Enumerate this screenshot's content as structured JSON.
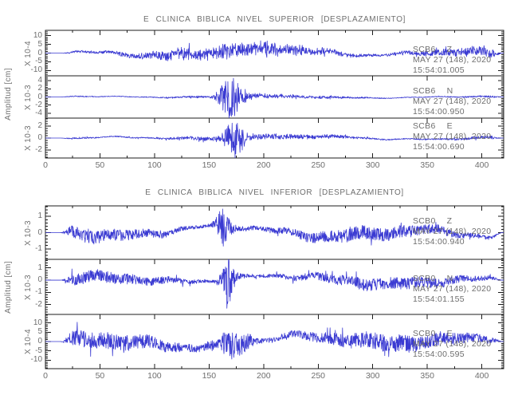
{
  "colors": {
    "trace": "#3a3ad2",
    "text": "#6e6e6e",
    "axis": "#1c1c1c",
    "background": "#ffffff"
  },
  "chart_data": [
    {
      "type": "line",
      "title": "E CLINICA BIBLICA NIVEL SUPERIOR [DESPLAZAMIENTO]",
      "ylabel": "Amplitud [cm]",
      "xlabel": "",
      "grid": false,
      "x_axis": {
        "range": [
          0,
          420
        ],
        "major_ticks": [
          0,
          50,
          100,
          150,
          200,
          250,
          300,
          350,
          400
        ],
        "minor_step": 25
      },
      "series": [
        {
          "station": "SCB6",
          "component": "Z",
          "date": "MAY 27 (148), 2020",
          "time": "15:54:01.005",
          "scale_label": "X 10-4",
          "y_ticks": [
            10,
            5,
            0,
            -5,
            -10
          ],
          "ylim": [
            -13,
            13
          ],
          "waveform": {
            "seed": 101,
            "base": 3.2,
            "wander": 3.0,
            "burst": {
              "center": 185,
              "width": 55,
              "amp": 2.5,
              "tail": 0
            }
          }
        },
        {
          "station": "SCB6",
          "component": "N",
          "date": "MAY 27 (148), 2020",
          "time": "15:54:00.950",
          "scale_label": "X 10-3",
          "y_ticks": [
            4,
            2,
            0,
            -2,
            -4
          ],
          "ylim": [
            -5.2,
            5.2
          ],
          "waveform": {
            "seed": 202,
            "base": 0.38,
            "wander": 0.32,
            "burst": {
              "center": 168,
              "width": 7,
              "amp": 4.6,
              "tail": 28
            }
          }
        },
        {
          "station": "SCB6",
          "component": "E",
          "date": "MAY 27 (148), 2020",
          "time": "15:54:00.690",
          "scale_label": "X 10-3",
          "y_ticks": [
            2,
            0,
            -2
          ],
          "ylim": [
            -3.3,
            3.3
          ],
          "waveform": {
            "seed": 303,
            "base": 0.42,
            "wander": 0.38,
            "burst": {
              "center": 172,
              "width": 6,
              "amp": 2.8,
              "tail": 20
            }
          }
        }
      ]
    },
    {
      "type": "line",
      "title": "E CLINICA BIBLICA NIVEL INFERIOR [DESPLAZAMIENTO]",
      "ylabel": "Amplitud [cm]",
      "xlabel": "",
      "grid": false,
      "x_axis": {
        "range": [
          0,
          420
        ],
        "major_ticks": [
          0,
          50,
          100,
          150,
          200,
          250,
          300,
          350,
          400
        ],
        "minor_step": 25
      },
      "series": [
        {
          "station": "SCB0",
          "component": "Z",
          "date": "MAY 27 (148), 2020",
          "time": "15:54:00.940",
          "scale_label": "X 10-3",
          "y_ticks": [
            1,
            0,
            -1
          ],
          "ylim": [
            -1.65,
            1.65
          ],
          "waveform": {
            "seed": 404,
            "base": 0.42,
            "wander": 0.5,
            "burst": {
              "center": 162,
              "width": 5,
              "amp": 1.0,
              "tail": 14
            }
          }
        },
        {
          "station": "SCB0",
          "component": "N",
          "date": "MAY 27 (148), 2020",
          "time": "15:54:01.155",
          "scale_label": "X 10-3",
          "y_ticks": [
            1,
            0,
            -1,
            -2
          ],
          "ylim": [
            -2.8,
            1.7
          ],
          "waveform": {
            "seed": 505,
            "base": 0.5,
            "wander": 0.5,
            "burst": {
              "center": 166,
              "width": 4,
              "amp": 1.9,
              "tail": 12
            }
          }
        },
        {
          "station": "SCB0",
          "component": "E",
          "date": "MAY 27 (148), 2020",
          "time": "15:54:00.595",
          "scale_label": "X 10-4",
          "y_ticks": [
            10,
            5,
            0,
            -5,
            -10
          ],
          "ylim": [
            -14.5,
            14.5
          ],
          "waveform": {
            "seed": 606,
            "base": 4.6,
            "wander": 4.2,
            "burst": {
              "center": 170,
              "width": 13,
              "amp": 6.5,
              "tail": 22
            }
          }
        }
      ]
    }
  ]
}
